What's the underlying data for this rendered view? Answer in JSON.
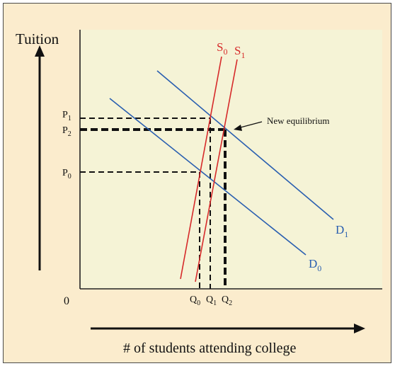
{
  "y_axis_label": "Tuition",
  "x_axis_label": "# of students attending college",
  "origin_label": "0",
  "annotation": "New equilibrium",
  "colors": {
    "background": "#fbeccd",
    "plot_area": "#f5f3d6",
    "supply": "#d62a2a",
    "demand": "#2a5fb0",
    "guides": "#111111"
  },
  "curves": {
    "S0": {
      "base": "S",
      "sub": "0"
    },
    "S1": {
      "base": "S",
      "sub": "1"
    },
    "D0": {
      "base": "D",
      "sub": "0"
    },
    "D1": {
      "base": "D",
      "sub": "1"
    }
  },
  "price_ticks": [
    {
      "base": "P",
      "sub": "1"
    },
    {
      "base": "P",
      "sub": "2"
    },
    {
      "base": "P",
      "sub": "0"
    }
  ],
  "quantity_ticks": [
    {
      "base": "Q",
      "sub": "0"
    },
    {
      "base": "Q",
      "sub": "1"
    },
    {
      "base": "Q",
      "sub": "2"
    }
  ]
}
